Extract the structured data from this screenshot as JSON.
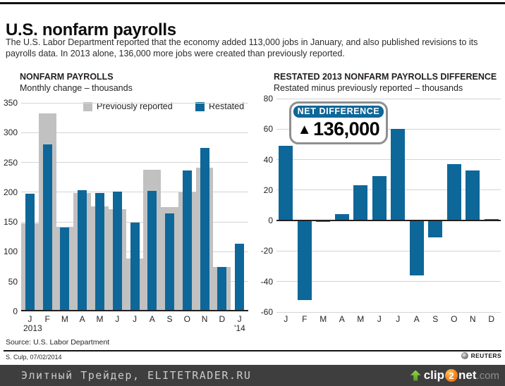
{
  "header": {
    "title": "U.S. nonfarm payrolls",
    "intro_lines": [
      "The U.S. Labor Department reported that the economy added 113,000 jobs in January, and also published revisions to its",
      "payrolls data. In 2013 alone, 136,000 more jobs were created than previously reported."
    ]
  },
  "footer": {
    "source": "Source: U.S. Labor Department",
    "credit": "S. Culp, 07/02/2014",
    "brand": "REUTERS"
  },
  "banner": {
    "text": "Элитный Трейдер, ELITETRADER.RU",
    "logo": {
      "clip": "clip",
      "two": "2",
      "net": "net",
      "com": ".com"
    }
  },
  "colors": {
    "restated_blue": "#0e6799",
    "previous_gray": "#c1c1c1",
    "grid_gray": "#d4d4d4",
    "axis_dark": "#231f20",
    "banner_bg": "#3e3e3e",
    "clip2net_orange": "#f58220",
    "clip2net_green": "#76b82a"
  },
  "chart_data": [
    {
      "type": "bar",
      "title": "NONFARM PAYROLLS",
      "subtitle": "Monthly change – thousands",
      "categories": [
        "J",
        "F",
        "M",
        "A",
        "M",
        "J",
        "J",
        "A",
        "S",
        "O",
        "N",
        "D",
        "J"
      ],
      "year_start_label": "2013",
      "year_end_label": "'14",
      "series": [
        {
          "name": "Previously reported",
          "color": "#c1c1c1",
          "values": [
            148,
            332,
            142,
            199,
            176,
            172,
            89,
            238,
            175,
            200,
            241,
            74,
            null
          ]
        },
        {
          "name": "Restated",
          "color": "#0e6799",
          "values": [
            197,
            280,
            141,
            203,
            199,
            201,
            149,
            202,
            164,
            237,
            274,
            75,
            113
          ]
        }
      ],
      "ylim": [
        0,
        350
      ],
      "yticks": [
        350,
        300,
        250,
        200,
        150,
        100,
        50,
        0
      ],
      "grid": true,
      "legend_position": "top"
    },
    {
      "type": "bar",
      "title": "RESTATED 2013 NONFARM PAYROLLS DIFFERENCE",
      "subtitle": "Restated minus previously reported – thousands",
      "categories": [
        "J",
        "F",
        "M",
        "A",
        "M",
        "J",
        "J",
        "A",
        "S",
        "O",
        "N",
        "D"
      ],
      "values": [
        49,
        -52,
        -1,
        4,
        23,
        29,
        60,
        -36,
        -11,
        37,
        33,
        1
      ],
      "ylim": [
        -60,
        80
      ],
      "yticks": [
        80,
        60,
        40,
        20,
        0,
        -20,
        -40,
        -60
      ],
      "grid": true,
      "callout": {
        "label": "NET DIFFERENCE",
        "arrow": "▲",
        "value": "136,000",
        "direction": "up"
      }
    }
  ]
}
